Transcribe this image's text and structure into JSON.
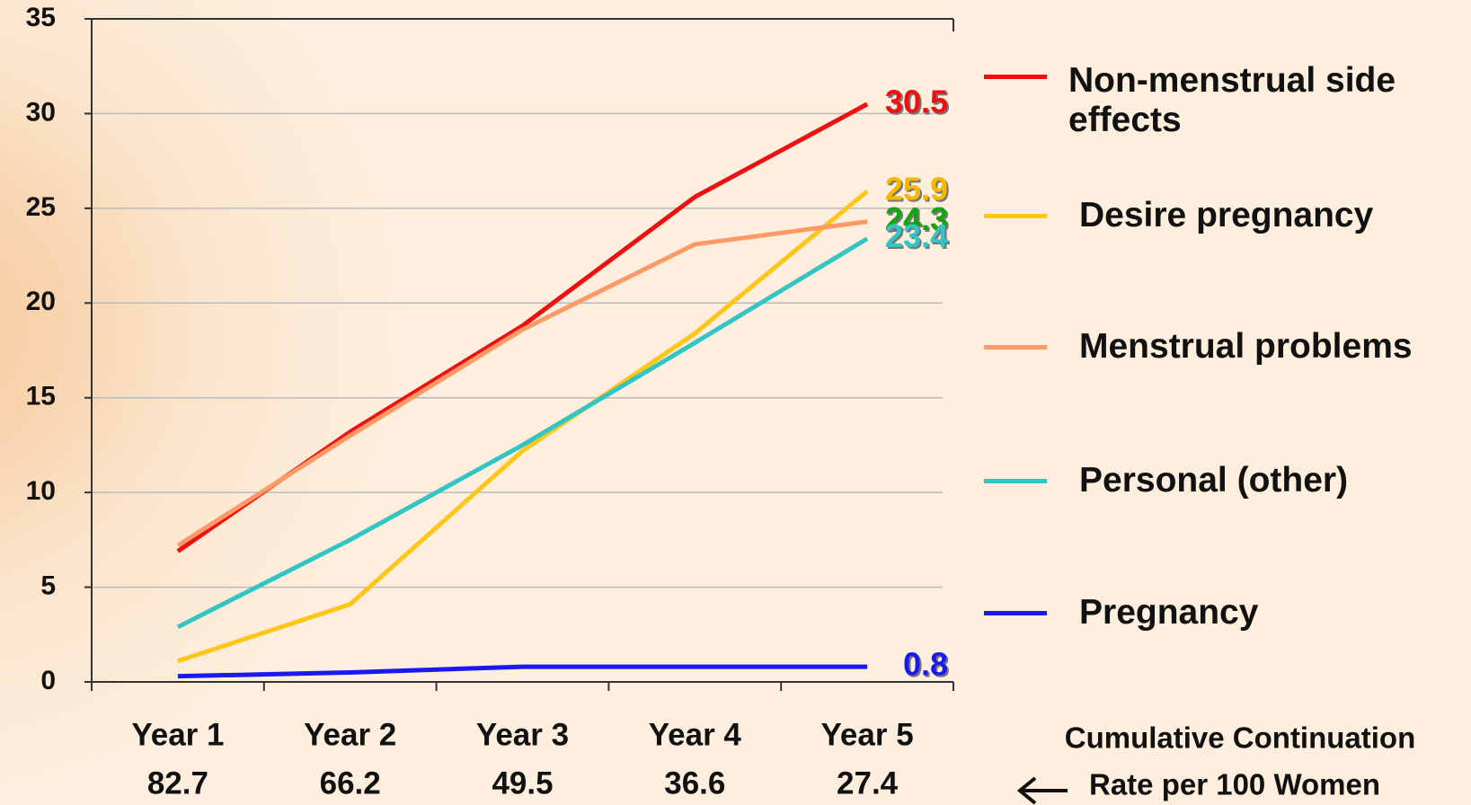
{
  "chart_data": {
    "type": "line",
    "categories": [
      "Year 1",
      "Year 2",
      "Year 3",
      "Year 4",
      "Year 5"
    ],
    "series": [
      {
        "name": "Non-menstrual side effects",
        "color": "#ee1111",
        "label_color": "#ee1111",
        "values": [
          6.9,
          13.2,
          18.8,
          25.6,
          30.5
        ]
      },
      {
        "name": "Desire pregnancy",
        "color": "#ffc61a",
        "label_color": "#f5b800",
        "values": [
          1.1,
          4.1,
          12.2,
          18.4,
          25.9
        ]
      },
      {
        "name": "Menstrual problems",
        "color": "#ff9966",
        "label_color": "#11a611",
        "values": [
          7.2,
          13.0,
          18.6,
          23.1,
          24.3
        ]
      },
      {
        "name": "Personal (other)",
        "color": "#33c4c4",
        "label_color": "#33c4c4",
        "values": [
          2.9,
          7.5,
          12.5,
          17.9,
          23.4
        ]
      },
      {
        "name": "Pregnancy",
        "color": "#1a1aee",
        "label_color": "#1a1aee",
        "values": [
          0.3,
          0.5,
          0.8,
          0.8,
          0.8
        ]
      }
    ],
    "ylim": [
      0,
      35
    ],
    "yticks": [
      0,
      5,
      10,
      15,
      20,
      25,
      30,
      35
    ],
    "grid": true,
    "continuation": {
      "label_lines": [
        "Cumulative Continuation",
        "Rate per 100 Women"
      ],
      "values": [
        82.7,
        66.2,
        49.5,
        36.6,
        27.4
      ]
    }
  }
}
